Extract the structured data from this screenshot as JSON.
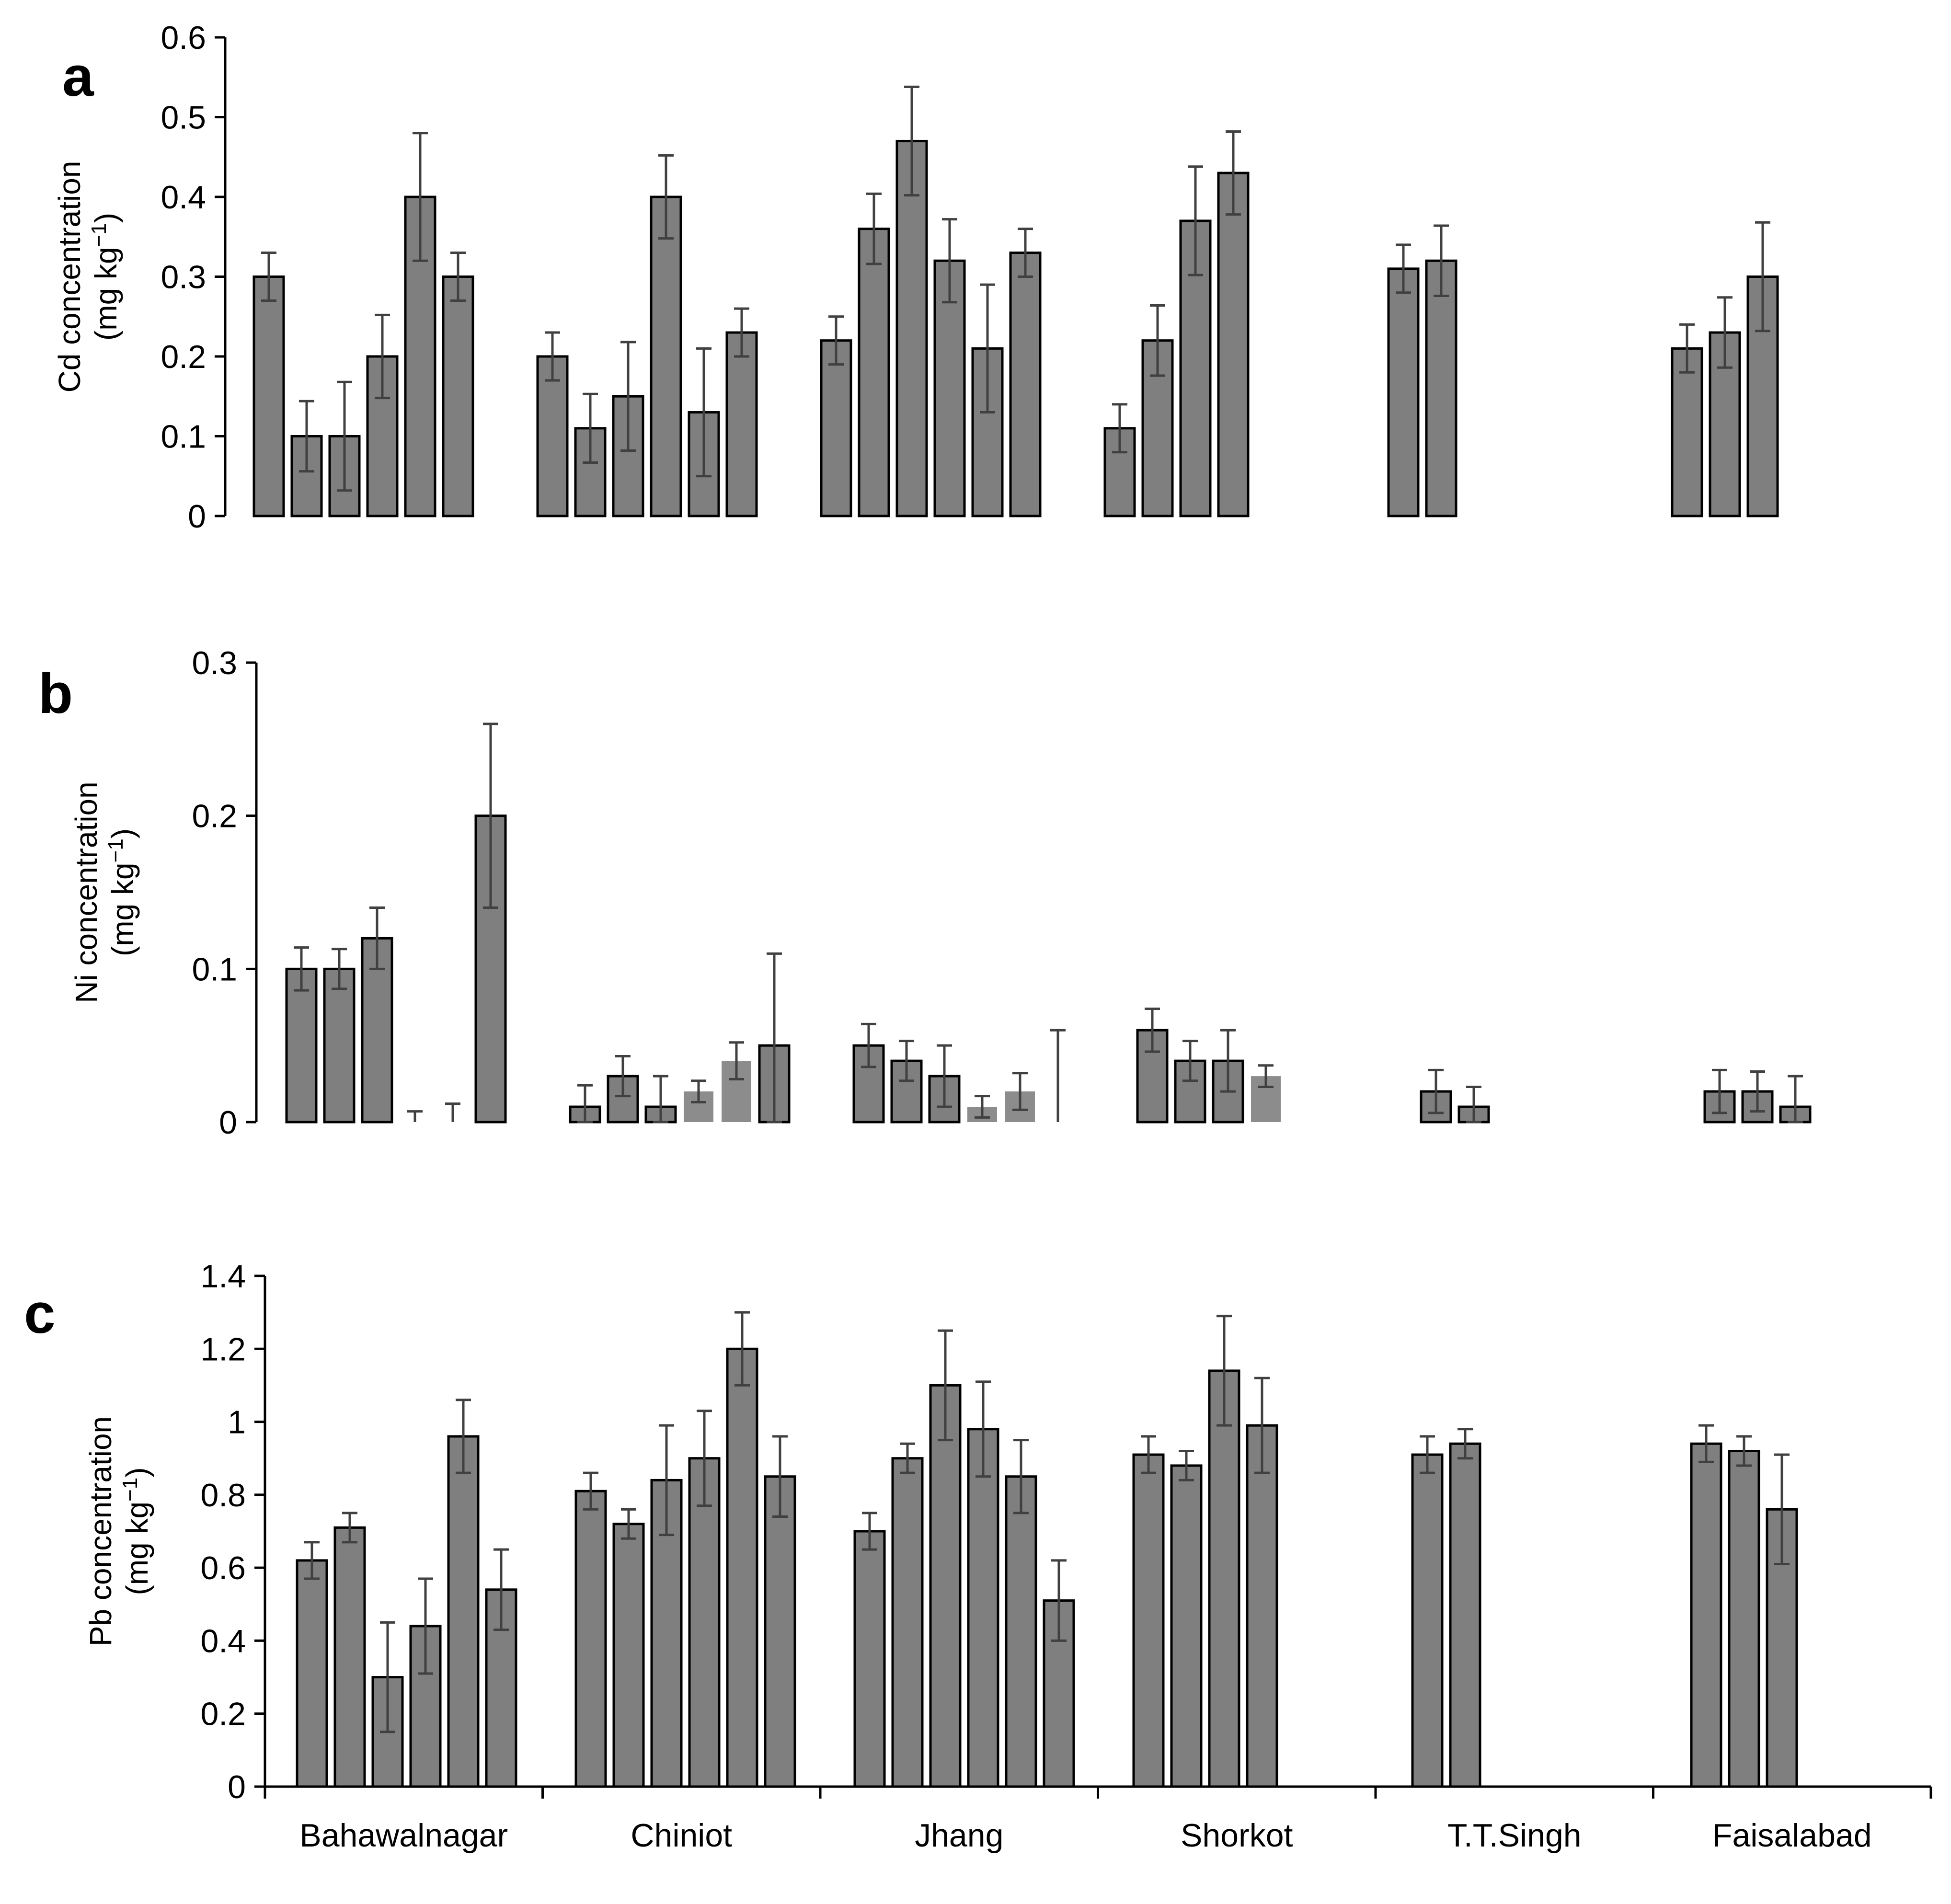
{
  "chart_data": [
    {
      "panel": "a",
      "type": "bar",
      "title": "",
      "ylabel_line1": "Cd concentration",
      "ylabel_line2": "(mg kg",
      "ylabel_sup": "−1",
      "ylabel_close": ")",
      "ylim": [
        0,
        0.6
      ],
      "yticks": [
        0,
        0.1,
        0.2,
        0.3,
        0.4,
        0.5,
        0.6
      ],
      "ytick_labels": [
        "0",
        "0.1",
        "0.2",
        "0.3",
        "0.4",
        "0.5",
        "0.6"
      ],
      "groups": [
        {
          "category": "Bahawalnagar",
          "bars": [
            {
              "value": 0.3,
              "err": 0.03
            },
            {
              "value": 0.1,
              "err": 0.044
            },
            {
              "value": 0.1,
              "err": 0.068
            },
            {
              "value": 0.2,
              "err": 0.052
            },
            {
              "value": 0.4,
              "err": 0.08
            },
            {
              "value": 0.3,
              "err": 0.03
            }
          ]
        },
        {
          "category": "Chiniot",
          "bars": [
            {
              "value": 0.2,
              "err": 0.03
            },
            {
              "value": 0.11,
              "err": 0.043
            },
            {
              "value": 0.15,
              "err": 0.068
            },
            {
              "value": 0.4,
              "err": 0.052
            },
            {
              "value": 0.13,
              "err": 0.08
            },
            {
              "value": 0.23,
              "err": 0.03
            }
          ]
        },
        {
          "category": "Jhang",
          "bars": [
            {
              "value": 0.22,
              "err": 0.03
            },
            {
              "value": 0.36,
              "err": 0.044
            },
            {
              "value": 0.47,
              "err": 0.068
            },
            {
              "value": 0.32,
              "err": 0.052
            },
            {
              "value": 0.21,
              "err": 0.08
            },
            {
              "value": 0.33,
              "err": 0.03
            }
          ]
        },
        {
          "category": "Shorkot",
          "bars": [
            {
              "value": 0.11,
              "err": 0.03
            },
            {
              "value": 0.22,
              "err": 0.044
            },
            {
              "value": 0.37,
              "err": 0.068
            },
            {
              "value": 0.43,
              "err": 0.052
            }
          ]
        },
        {
          "category": "T.T.Singh",
          "bars": [
            {
              "value": 0.31,
              "err": 0.03
            },
            {
              "value": 0.32,
              "err": 0.044
            }
          ]
        },
        {
          "category": "Faisalabad",
          "bars": [
            {
              "value": 0.21,
              "err": 0.03
            },
            {
              "value": 0.23,
              "err": 0.044
            },
            {
              "value": 0.3,
              "err": 0.068
            }
          ]
        }
      ]
    },
    {
      "panel": "b",
      "type": "bar",
      "title": "",
      "ylabel_line1": "Ni concentration",
      "ylabel_line2": "(mg kg",
      "ylabel_sup": "−1",
      "ylabel_close": ")",
      "ylim": [
        0,
        0.3
      ],
      "yticks": [
        0,
        0.1,
        0.2,
        0.3
      ],
      "ytick_labels": [
        "0",
        "0.1",
        "0.2",
        "0.3"
      ],
      "groups": [
        {
          "category": "Bahawalnagar",
          "bars": [
            {
              "value": 0.1,
              "err": 0.014
            },
            {
              "value": 0.1,
              "err": 0.013
            },
            {
              "value": 0.12,
              "err": 0.02
            },
            {
              "value": 0.0,
              "err": 0.007
            },
            {
              "value": 0.0,
              "err": 0.012
            },
            {
              "value": 0.2,
              "err": 0.06
            }
          ]
        },
        {
          "category": "Chiniot",
          "bars": [
            {
              "value": 0.01,
              "err": 0.014
            },
            {
              "value": 0.03,
              "err": 0.013
            },
            {
              "value": 0.01,
              "err": 0.02
            },
            {
              "value": 0.02,
              "err": 0.007,
              "lighter": true
            },
            {
              "value": 0.04,
              "err": 0.012,
              "lighter": true
            },
            {
              "value": 0.05,
              "err": 0.06
            }
          ]
        },
        {
          "category": "Jhang",
          "bars": [
            {
              "value": 0.05,
              "err": 0.014
            },
            {
              "value": 0.04,
              "err": 0.013
            },
            {
              "value": 0.03,
              "err": 0.02
            },
            {
              "value": 0.01,
              "err": 0.007,
              "lighter": true
            },
            {
              "value": 0.02,
              "err": 0.012,
              "lighter": true
            },
            {
              "value": 0.0,
              "err": 0.06
            }
          ]
        },
        {
          "category": "Shorkot",
          "bars": [
            {
              "value": 0.06,
              "err": 0.014
            },
            {
              "value": 0.04,
              "err": 0.013
            },
            {
              "value": 0.04,
              "err": 0.02
            },
            {
              "value": 0.03,
              "err": 0.007,
              "lighter": true
            }
          ]
        },
        {
          "category": "T.T.Singh",
          "bars": [
            {
              "value": 0.02,
              "err": 0.014
            },
            {
              "value": 0.01,
              "err": 0.013
            }
          ]
        },
        {
          "category": "Faisalabad",
          "bars": [
            {
              "value": 0.02,
              "err": 0.014
            },
            {
              "value": 0.02,
              "err": 0.013
            },
            {
              "value": 0.01,
              "err": 0.02
            }
          ]
        }
      ]
    },
    {
      "panel": "c",
      "type": "bar",
      "title": "",
      "ylabel_line1": "Pb concentration",
      "ylabel_line2": "(mg kg",
      "ylabel_sup": "−1",
      "ylabel_close": ")",
      "ylim": [
        0,
        1.4
      ],
      "yticks": [
        0,
        0.2,
        0.4,
        0.6,
        0.8,
        1.0,
        1.2,
        1.4
      ],
      "ytick_labels": [
        "0",
        "0.2",
        "0.4",
        "0.6",
        "0.8",
        "1",
        "1.2",
        "1.4"
      ],
      "groups": [
        {
          "category": "Bahawalnagar",
          "bars": [
            {
              "value": 0.62,
              "err": 0.05
            },
            {
              "value": 0.71,
              "err": 0.04
            },
            {
              "value": 0.3,
              "err": 0.15
            },
            {
              "value": 0.44,
              "err": 0.13
            },
            {
              "value": 0.96,
              "err": 0.1
            },
            {
              "value": 0.54,
              "err": 0.11
            }
          ]
        },
        {
          "category": "Chiniot",
          "bars": [
            {
              "value": 0.81,
              "err": 0.05
            },
            {
              "value": 0.72,
              "err": 0.04
            },
            {
              "value": 0.84,
              "err": 0.15
            },
            {
              "value": 0.9,
              "err": 0.13
            },
            {
              "value": 1.2,
              "err": 0.1
            },
            {
              "value": 0.85,
              "err": 0.11
            }
          ]
        },
        {
          "category": "Jhang",
          "bars": [
            {
              "value": 0.7,
              "err": 0.05
            },
            {
              "value": 0.9,
              "err": 0.04
            },
            {
              "value": 1.1,
              "err": 0.15
            },
            {
              "value": 0.98,
              "err": 0.13
            },
            {
              "value": 0.85,
              "err": 0.1
            },
            {
              "value": 0.51,
              "err": 0.11
            }
          ]
        },
        {
          "category": "Shorkot",
          "bars": [
            {
              "value": 0.91,
              "err": 0.05
            },
            {
              "value": 0.88,
              "err": 0.04
            },
            {
              "value": 1.14,
              "err": 0.15
            },
            {
              "value": 0.99,
              "err": 0.13
            }
          ]
        },
        {
          "category": "T.T.Singh",
          "bars": [
            {
              "value": 0.91,
              "err": 0.05
            },
            {
              "value": 0.94,
              "err": 0.04
            }
          ]
        },
        {
          "category": "Faisalabad",
          "bars": [
            {
              "value": 0.94,
              "err": 0.05
            },
            {
              "value": 0.92,
              "err": 0.04
            },
            {
              "value": 0.76,
              "err": 0.15
            }
          ]
        }
      ]
    }
  ],
  "colors": {
    "bar_fill": "#7f7f7f",
    "bar_fill_light": "#8c8c8c",
    "bar_stroke": "#000000",
    "error_bar": "#404040",
    "axis": "#000000"
  },
  "categories": [
    "Bahawalnagar",
    "Chiniot",
    "Jhang",
    "Shorkot",
    "T.T.Singh",
    "Faisalabad"
  ]
}
